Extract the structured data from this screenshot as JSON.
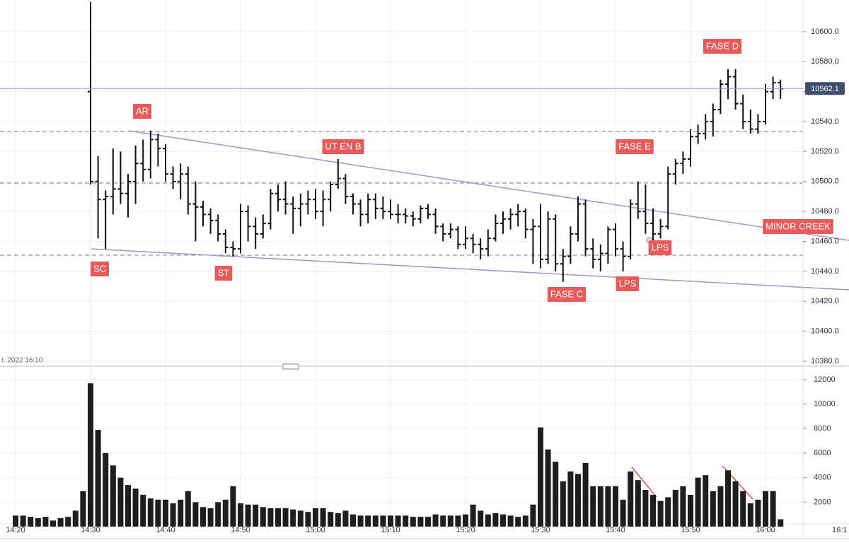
{
  "chart_data": {
    "type": "ohlc",
    "categories": [
      "14:20",
      null,
      null,
      null,
      null,
      null,
      null,
      null,
      null,
      null,
      "14:30",
      null,
      null,
      null,
      null,
      null,
      null,
      null,
      null,
      null,
      "14:40",
      null,
      null,
      null,
      null,
      null,
      null,
      null,
      null,
      null,
      "14:50",
      null,
      null,
      null,
      null,
      null,
      null,
      null,
      null,
      null,
      "15:00",
      null,
      null,
      null,
      null,
      null,
      null,
      null,
      null,
      null,
      "15:10",
      null,
      null,
      null,
      null,
      null,
      null,
      null,
      null,
      null,
      "15:20",
      null,
      null,
      null,
      null,
      null,
      null,
      null,
      null,
      null,
      "15:30",
      null,
      null,
      null,
      null,
      null,
      null,
      null,
      null,
      null,
      "15:40",
      null,
      null,
      null,
      null,
      null,
      null,
      null,
      null,
      null,
      "15:50",
      null,
      null,
      null,
      null,
      null,
      null,
      null,
      null,
      null,
      "16:00",
      null,
      null
    ],
    "open": [
      null,
      null,
      null,
      null,
      null,
      null,
      null,
      null,
      null,
      null,
      10560,
      10500,
      10488,
      10490,
      10495,
      10492,
      10500,
      10512,
      10508,
      10528,
      10522,
      10505,
      10500,
      10505,
      10485,
      10483,
      10478,
      10474,
      10465,
      10456,
      10455,
      10480,
      10470,
      10465,
      10472,
      10492,
      10488,
      10485,
      10482,
      10485,
      10488,
      10480,
      10488,
      10498,
      10502,
      10490,
      10485,
      10478,
      10488,
      10482,
      10480,
      10478,
      10478,
      10477,
      10475,
      10482,
      10478,
      10470,
      10465,
      10468,
      10458,
      10462,
      10458,
      10455,
      10462,
      10472,
      10475,
      10478,
      10480,
      10468,
      10470,
      10448,
      10475,
      10445,
      10450,
      10465,
      10485,
      10455,
      10448,
      10452,
      10468,
      10455,
      10450,
      10485,
      10480,
      10472,
      10465,
      10470,
      10505,
      10512,
      10515,
      10530,
      10532,
      10540,
      10548,
      10565,
      10570,
      10552,
      10540,
      10535,
      10540,
      10560,
      10566
    ],
    "high": [
      null,
      null,
      null,
      null,
      null,
      null,
      null,
      null,
      null,
      null,
      10620,
      10517,
      10494,
      10522,
      10520,
      10505,
      10524,
      10528,
      10534,
      10532,
      10525,
      10510,
      10512,
      10510,
      10500,
      10487,
      10482,
      10478,
      10468,
      10460,
      10485,
      10484,
      10476,
      10478,
      10495,
      10498,
      10500,
      10490,
      10492,
      10494,
      10495,
      10494,
      10500,
      10515,
      10505,
      10492,
      10488,
      10492,
      10492,
      10490,
      10488,
      10485,
      10482,
      10480,
      10484,
      10485,
      10482,
      10472,
      10472,
      10470,
      10470,
      10465,
      10462,
      10468,
      10478,
      10480,
      10482,
      10485,
      10482,
      10475,
      10485,
      10480,
      10478,
      10455,
      10470,
      10490,
      10488,
      10462,
      10458,
      10470,
      10472,
      10460,
      10488,
      10500,
      10498,
      10482,
      10475,
      10510,
      10515,
      10520,
      10535,
      10538,
      10545,
      10552,
      10568,
      10575,
      10575,
      10558,
      10548,
      10545,
      10565,
      10570,
      10568
    ],
    "low": [
      null,
      null,
      null,
      null,
      null,
      null,
      null,
      null,
      null,
      null,
      10498,
      10462,
      10455,
      10478,
      10485,
      10476,
      10485,
      10500,
      10502,
      10510,
      10500,
      10495,
      10488,
      10478,
      10460,
      10470,
      10465,
      10460,
      10452,
      10450,
      10452,
      10460,
      10455,
      10462,
      10468,
      10480,
      10478,
      10465,
      10470,
      10478,
      10475,
      10470,
      10480,
      10495,
      10485,
      10478,
      10470,
      10472,
      10475,
      10475,
      10475,
      10472,
      10472,
      10470,
      10472,
      10475,
      10465,
      10460,
      10462,
      10455,
      10455,
      10452,
      10448,
      10450,
      10460,
      10465,
      10468,
      10470,
      10462,
      10445,
      10442,
      10445,
      10440,
      10433,
      10445,
      10460,
      10450,
      10442,
      10440,
      10445,
      10450,
      10440,
      10448,
      10475,
      10465,
      10460,
      10462,
      10468,
      10498,
      10505,
      10510,
      10525,
      10528,
      10530,
      10545,
      10555,
      10548,
      10535,
      10532,
      10532,
      10538,
      10555,
      10555
    ],
    "close": [
      null,
      null,
      null,
      null,
      null,
      null,
      null,
      null,
      null,
      null,
      10500,
      10488,
      10490,
      10495,
      10492,
      10500,
      10512,
      10508,
      10528,
      10522,
      10505,
      10500,
      10505,
      10485,
      10483,
      10478,
      10474,
      10465,
      10456,
      10455,
      10480,
      10470,
      10465,
      10472,
      10492,
      10488,
      10485,
      10482,
      10485,
      10488,
      10480,
      10488,
      10498,
      10502,
      10490,
      10485,
      10478,
      10488,
      10482,
      10480,
      10478,
      10478,
      10477,
      10475,
      10482,
      10478,
      10470,
      10465,
      10468,
      10458,
      10462,
      10458,
      10455,
      10462,
      10472,
      10475,
      10478,
      10480,
      10468,
      10470,
      10448,
      10475,
      10445,
      10450,
      10465,
      10485,
      10455,
      10448,
      10452,
      10468,
      10455,
      10450,
      10485,
      10480,
      10472,
      10465,
      10470,
      10505,
      10512,
      10515,
      10530,
      10532,
      10540,
      10548,
      10565,
      10570,
      10552,
      10540,
      10535,
      10540,
      10560,
      10566,
      10562
    ],
    "color": "#111111",
    "ylim": [
      10378.1,
      10621.2
    ],
    "yticks": [
      {
        "value": 10380,
        "label": "10380.0"
      },
      {
        "value": 10400,
        "label": "10400.0"
      },
      {
        "value": 10420,
        "label": "10420.0"
      },
      {
        "value": 10440,
        "label": "10440.0"
      },
      {
        "value": 10460,
        "label": "10460.0"
      },
      {
        "value": 10480,
        "label": "10480.0"
      },
      {
        "value": 10500,
        "label": "10500.0"
      },
      {
        "value": 10520,
        "label": "10520.0"
      },
      {
        "value": 10540,
        "label": "10540.0"
      },
      {
        "value": 10560,
        "label": "10560.0"
      },
      {
        "value": 10580,
        "label": "10580.0"
      },
      {
        "value": 10600,
        "label": "10600.0"
      }
    ],
    "last_price": 10562.1,
    "grid": true,
    "annotations": [
      "AR",
      "SC",
      "ST",
      "UT EN B",
      "FASE C",
      "LPS",
      "FASE E",
      "LPS",
      "MINOR CREEK",
      "FASE D"
    ],
    "cursor_label": "t. 2022 16:10",
    "edge_label": "16:1",
    "volume": {
      "values": [
        900,
        900,
        800,
        700,
        800,
        500,
        700,
        800,
        1300,
        2900,
        11700,
        7900,
        6000,
        5000,
        4000,
        3400,
        3100,
        2600,
        2300,
        2200,
        2200,
        1900,
        2200,
        2900,
        2000,
        1600,
        1500,
        2000,
        2200,
        3300,
        1900,
        1800,
        1800,
        1600,
        1500,
        1500,
        1500,
        1400,
        1300,
        1200,
        1500,
        1500,
        1200,
        1100,
        1300,
        1000,
        900,
        900,
        900,
        900,
        900,
        900,
        900,
        800,
        800,
        800,
        1000,
        900,
        900,
        900,
        1000,
        1800,
        1300,
        1000,
        1100,
        1000,
        900,
        800,
        900,
        1800,
        8100,
        6300,
        5300,
        3700,
        4500,
        4300,
        5200,
        3300,
        3300,
        3300,
        3300,
        2200,
        4500,
        3800,
        3000,
        2600,
        2100,
        2400,
        3000,
        3300,
        2600,
        4000,
        4200,
        2900,
        3300,
        4600,
        3700,
        2900,
        1900,
        2200,
        2900,
        2900,
        600
      ],
      "color": "#1e1e1e",
      "ylim": [
        0,
        12870
      ],
      "yticks": [
        2000,
        4000,
        6000,
        8000,
        10000,
        12000
      ]
    }
  }
}
